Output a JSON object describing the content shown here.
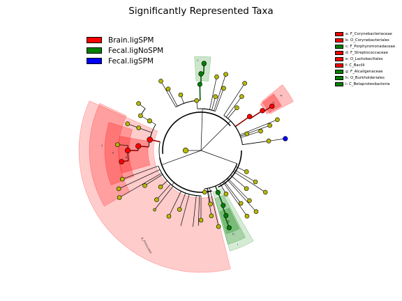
{
  "chart_data": {
    "type": "cladogram",
    "title": "Significantly Represented Taxa",
    "classes": [
      {
        "name": "Brain.ligSPM",
        "color": "#ff0000"
      },
      {
        "name": "Fecal.ligNoSPM",
        "color": "#008000"
      },
      {
        "name": "Fecal.ligSPM",
        "color": "#0000ff"
      }
    ],
    "clades": [
      {
        "label": "a: F_Corynebacteriaceae",
        "class": "Brain.ligSPM"
      },
      {
        "label": "b: O_Corynebacteriales",
        "class": "Brain.ligSPM"
      },
      {
        "label": "c: F_Porphyromonadaceae",
        "class": "Fecal.ligNoSPM"
      },
      {
        "label": "d: F_Streptococcaceae",
        "class": "Brain.ligSPM"
      },
      {
        "label": "e: O_Lactobacillales",
        "class": "Brain.ligSPM"
      },
      {
        "label": "f: C_Bacilli",
        "class": "Brain.ligSPM"
      },
      {
        "label": "g: F_Alcaligenaceae",
        "class": "Fecal.ligNoSPM"
      },
      {
        "label": "h: O_Burkholderiales",
        "class": "Fecal.ligNoSPM"
      },
      {
        "label": "i: C_Betaproteobacteria",
        "class": "Fecal.ligNoSPM"
      }
    ],
    "sector_labels": [
      "a",
      "b",
      "c",
      "d",
      "e",
      "f",
      "g",
      "h",
      "i",
      "p_Firmicutes"
    ],
    "center_label": "."
  }
}
